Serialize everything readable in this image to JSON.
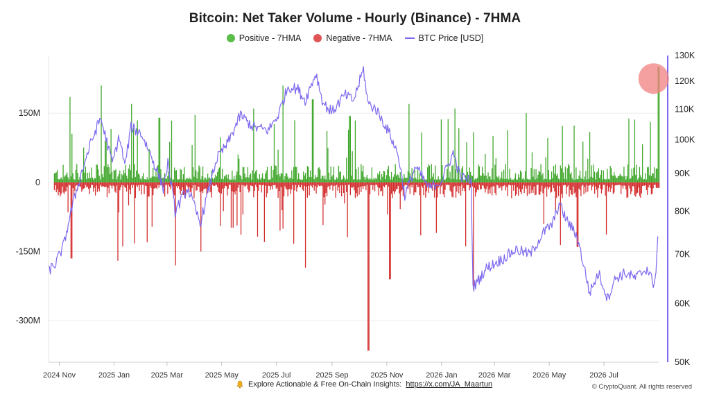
{
  "chart_data": {
    "type": "bar",
    "title": "Bitcoin: Net Taker Volume - Hourly (Binance) - 7HMA",
    "legend": [
      {
        "name": "Positive - 7HMA",
        "color": "#3fa62a",
        "kind": "bar"
      },
      {
        "name": "Negative - 7HMA",
        "color": "#d32b2b",
        "kind": "bar"
      },
      {
        "name": "BTC Price [USD]",
        "color": "#7b68ee",
        "kind": "line"
      }
    ],
    "legend_placement": "top-center",
    "grid": true,
    "x_ticks": [
      "2024 Nov",
      "2025 Jan",
      "2025 Mar",
      "2025 May",
      "2025 Jul",
      "2025 Sep",
      "2025 Nov",
      "2026 Jan",
      "2026 Mar",
      "2026 May",
      "2026 Jul"
    ],
    "x_range": [
      "2024-10-20",
      "2026-08-31"
    ],
    "y_left": {
      "ticks": [
        150,
        0,
        -150,
        -300
      ],
      "tick_labels": [
        "150M",
        "0",
        "-150M",
        "-300M"
      ],
      "range": [
        -390,
        275
      ],
      "unit": "M USD"
    },
    "y_right": {
      "ticks": [
        130000,
        120000,
        110000,
        100000,
        90000,
        80000,
        70000,
        60000,
        50000
      ],
      "tick_labels": [
        "130K",
        "120K",
        "110K",
        "100K",
        "90K",
        "80K",
        "70K",
        "60K",
        "50K"
      ],
      "scale": "log",
      "range": [
        50000,
        130000
      ]
    },
    "series": [
      {
        "name": "BTC Price [USD]",
        "type": "line",
        "dates": [
          "2024-10-20",
          "2024-10-28",
          "2024-11-06",
          "2024-11-12",
          "2024-11-22",
          "2024-12-05",
          "2024-12-17",
          "2024-12-30",
          "2025-01-07",
          "2025-01-13",
          "2025-01-20",
          "2025-01-31",
          "2025-02-10",
          "2025-02-25",
          "2025-03-02",
          "2025-03-10",
          "2025-03-24",
          "2025-04-07",
          "2025-04-16",
          "2025-04-25",
          "2025-05-08",
          "2025-05-22",
          "2025-06-05",
          "2025-06-22",
          "2025-07-03",
          "2025-07-14",
          "2025-07-25",
          "2025-08-02",
          "2025-08-14",
          "2025-08-22",
          "2025-09-01",
          "2025-09-15",
          "2025-09-25",
          "2025-10-06",
          "2025-10-11",
          "2025-10-20",
          "2025-11-04",
          "2025-11-14",
          "2025-11-21",
          "2025-12-03",
          "2025-12-18",
          "2026-01-01",
          "2026-01-14",
          "2026-01-22",
          "2026-02-03",
          "2026-02-05",
          "2026-02-20",
          "2026-03-10",
          "2026-03-25",
          "2026-04-10",
          "2026-04-25",
          "2026-05-05",
          "2026-05-12",
          "2026-05-20",
          "2026-06-01",
          "2026-06-15",
          "2026-06-25",
          "2026-07-05",
          "2026-07-14",
          "2026-07-25",
          "2026-08-05",
          "2026-08-18",
          "2026-08-25",
          "2026-08-28",
          "2026-08-30"
        ],
        "values": [
          66500,
          68000,
          72000,
          78000,
          87000,
          98000,
          107000,
          93000,
          101000,
          92000,
          104000,
          102000,
          96000,
          86000,
          93000,
          80000,
          86000,
          77000,
          85000,
          94000,
          99000,
          108000,
          104000,
          103000,
          108000,
          118000,
          117000,
          113000,
          123000,
          112000,
          109000,
          115000,
          113000,
          124500,
          112000,
          110000,
          102000,
          95000,
          84000,
          92000,
          86000,
          88000,
          96000,
          89000,
          88000,
          63000,
          67000,
          69000,
          71000,
          70000,
          75000,
          77000,
          82000,
          78000,
          74000,
          62000,
          66000,
          61000,
          65000,
          66000,
          65000,
          67000,
          64000,
          66000,
          74000
        ]
      },
      {
        "name": "Positive - 7HMA",
        "type": "bar",
        "unit": "M USD",
        "typical_max": 40,
        "notable_peaks": [
          {
            "date": "2024-11-12",
            "value": 185
          },
          {
            "date": "2024-12-17",
            "value": 210
          },
          {
            "date": "2025-01-20",
            "value": 170
          },
          {
            "date": "2025-02-20",
            "value": 140
          },
          {
            "date": "2025-06-05",
            "value": 160
          },
          {
            "date": "2025-07-08",
            "value": 210
          },
          {
            "date": "2025-08-10",
            "value": 180
          },
          {
            "date": "2025-11-25",
            "value": 170
          },
          {
            "date": "2026-01-15",
            "value": 160
          },
          {
            "date": "2026-04-05",
            "value": 150
          },
          {
            "date": "2026-08-30",
            "value": 250
          }
        ]
      },
      {
        "name": "Negative - 7HMA",
        "type": "bar",
        "unit": "M USD",
        "typical_min": -35,
        "notable_troughs": [
          {
            "date": "2024-11-14",
            "value": -165
          },
          {
            "date": "2025-01-05",
            "value": -170
          },
          {
            "date": "2025-03-10",
            "value": -180
          },
          {
            "date": "2025-04-07",
            "value": -150
          },
          {
            "date": "2025-08-02",
            "value": -185
          },
          {
            "date": "2025-10-11",
            "value": -365
          },
          {
            "date": "2025-11-04",
            "value": -210
          },
          {
            "date": "2026-02-05",
            "value": -225
          },
          {
            "date": "2026-06-01",
            "value": -140
          }
        ]
      }
    ],
    "annotations": [
      {
        "type": "highlight-circle",
        "date": "2026-08-30",
        "color": "#f08080"
      }
    ]
  },
  "footer": {
    "text": "Explore Actionable & Free On-Chain Insights:",
    "link": "https://x.com/JA_Maartun",
    "copyright": "© CryptoQuant. All rights reserved"
  },
  "icons": {
    "footer_icon": "bell-icon"
  }
}
